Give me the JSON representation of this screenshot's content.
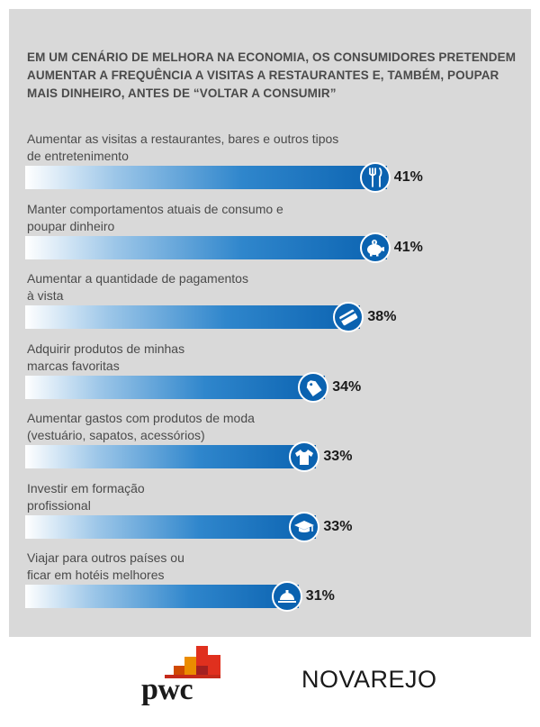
{
  "title": "EM UM CENÁRIO DE MELHORA NA ECONOMIA, OS CONSUMIDORES PRETENDEM AUMENTAR A FREQUÊNCIA A VISITAS A RESTAURANTES E, TAMBÉM, POUPAR MAIS DINHEIRO, ANTES DE “VOLTAR A CONSUMIR”",
  "chart_data": {
    "type": "bar",
    "orientation": "horizontal",
    "title": "EM UM CENÁRIO DE MELHORA NA ECONOMIA, OS CONSUMIDORES PRETENDEM AUMENTAR A FREQUÊNCIA A VISITAS A RESTAURANTES E, TAMBÉM, POUPAR MAIS DINHEIRO, ANTES DE “VOLTAR A CONSUMIR”",
    "unit": "%",
    "xlim": [
      0,
      41
    ],
    "grid": false,
    "bar_color": "#0a62b0",
    "categories": [
      [
        "Aumentar as visitas a restaurantes, bares e outros tipos",
        "de entretenimento"
      ],
      [
        "Manter comportamentos atuais de consumo e",
        "poupar dinheiro"
      ],
      [
        "Aumentar a quantidade de pagamentos",
        "à vista"
      ],
      [
        "Adquirir produtos de minhas",
        "marcas favoritas"
      ],
      [
        "Aumentar gastos com produtos de moda",
        "(vestuário, sapatos, acessórios)"
      ],
      [
        "Investir em formação",
        "profissional"
      ],
      [
        "Viajar para outros países ou",
        "ficar em hotéis melhores"
      ]
    ],
    "values": [
      41,
      41,
      38,
      34,
      33,
      33,
      31
    ],
    "value_labels": [
      "41%",
      "41%",
      "38%",
      "34%",
      "33%",
      "33%",
      "31%"
    ],
    "icons": [
      "fork-knife-icon",
      "piggy-bank-icon",
      "credit-card-icon",
      "price-tag-icon",
      "shirt-icon",
      "graduation-cap-icon",
      "service-bell-icon"
    ]
  },
  "logos": {
    "pwc": "pwc",
    "novarejo": "NOVAREJO"
  }
}
